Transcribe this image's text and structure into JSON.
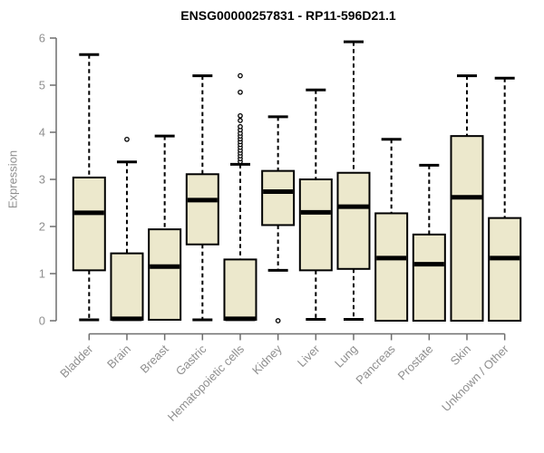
{
  "chart_data": {
    "type": "boxplot",
    "title": "ENSG00000257831 - RP11-596D21.1",
    "ylabel": "Expression",
    "xlabel": "",
    "ylim": [
      0,
      6
    ],
    "yticks": [
      0,
      1,
      2,
      3,
      4,
      5,
      6
    ],
    "grid": false,
    "legend": false,
    "categories": [
      "Bladder",
      "Brain",
      "Breast",
      "Gastric",
      "Hematopoietic cells",
      "Kidney",
      "Liver",
      "Lung",
      "Pancreas",
      "Prostate",
      "Skin",
      "Unknown / Other"
    ],
    "series": [
      {
        "category": "Bladder",
        "min": 0.02,
        "q1": 1.07,
        "median": 2.29,
        "q3": 3.04,
        "max": 5.65,
        "outliers": []
      },
      {
        "category": "Brain",
        "min": 0.02,
        "q1": 0.02,
        "median": 0.04,
        "q3": 1.43,
        "max": 3.37,
        "outliers": [
          3.85
        ]
      },
      {
        "category": "Breast",
        "min": 0.02,
        "q1": 0.02,
        "median": 1.15,
        "q3": 1.94,
        "max": 3.92,
        "outliers": []
      },
      {
        "category": "Gastric",
        "min": 0.02,
        "q1": 1.62,
        "median": 2.56,
        "q3": 3.11,
        "max": 5.2,
        "outliers": []
      },
      {
        "category": "Hematopoietic cells",
        "min": 0.02,
        "q1": 0.02,
        "median": 0.04,
        "q3": 1.3,
        "max": 3.32,
        "outliers": [
          3.38,
          3.44,
          3.5,
          3.56,
          3.62,
          3.68,
          3.74,
          3.8,
          3.86,
          3.92,
          3.98,
          4.05,
          4.12,
          4.25,
          4.35,
          4.85,
          5.2
        ]
      },
      {
        "category": "Kidney",
        "min": 1.07,
        "q1": 2.03,
        "median": 2.74,
        "q3": 3.18,
        "max": 4.33,
        "outliers": [
          0.0
        ]
      },
      {
        "category": "Liver",
        "min": 0.03,
        "q1": 1.07,
        "median": 2.3,
        "q3": 3.0,
        "max": 4.9,
        "outliers": []
      },
      {
        "category": "Lung",
        "min": 0.03,
        "q1": 1.1,
        "median": 2.42,
        "q3": 3.14,
        "max": 5.92,
        "outliers": []
      },
      {
        "category": "Pancreas",
        "min": 0.0,
        "q1": 0.0,
        "median": 1.33,
        "q3": 2.28,
        "max": 3.85,
        "outliers": []
      },
      {
        "category": "Prostate",
        "min": 0.0,
        "q1": 0.0,
        "median": 1.2,
        "q3": 1.83,
        "max": 3.3,
        "outliers": []
      },
      {
        "category": "Skin",
        "min": 0.0,
        "q1": 0.0,
        "median": 2.62,
        "q3": 3.92,
        "max": 5.2,
        "outliers": []
      },
      {
        "category": "Unknown / Other",
        "min": 0.0,
        "q1": 0.0,
        "median": 1.33,
        "q3": 2.18,
        "max": 5.15,
        "outliers": []
      }
    ],
    "colors": {
      "box_fill": "#ece8cc",
      "box_stroke": "#000000",
      "median": "#000000",
      "whisker": "#000000",
      "outlier_stroke": "#000000",
      "axis": "#6e6e6e",
      "labels": "#8f8f8f",
      "title": "#000000",
      "background": "#ffffff"
    }
  }
}
